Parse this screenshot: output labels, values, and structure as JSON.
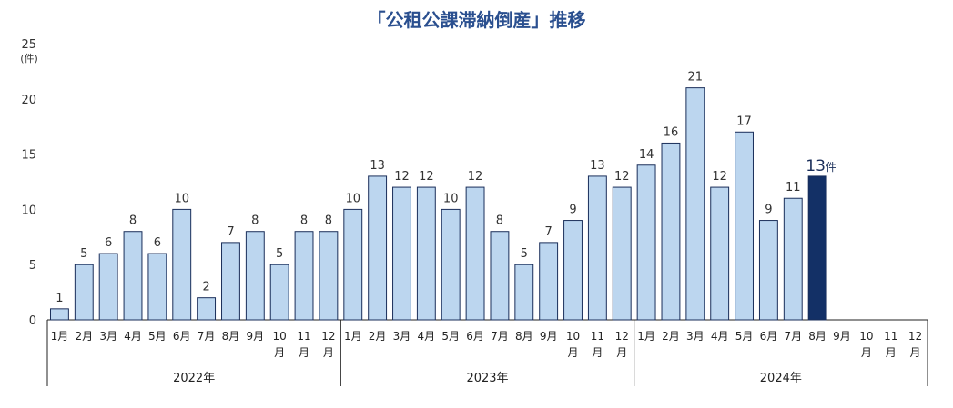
{
  "chart_data": {
    "type": "bar",
    "title": "「公租公課滞納倒産」推移",
    "y_unit": "(件)",
    "ylim": [
      0,
      25
    ],
    "yticks": [
      0,
      5,
      10,
      15,
      20,
      25
    ],
    "grid": false,
    "groups": [
      {
        "year": "2022年",
        "months": [
          "1月",
          "2月",
          "3月",
          "4月",
          "5月",
          "6月",
          "7月",
          "8月",
          "9月",
          "10月",
          "11月",
          "12月"
        ],
        "values": [
          1,
          5,
          6,
          8,
          6,
          10,
          2,
          7,
          8,
          5,
          8,
          8
        ]
      },
      {
        "year": "2023年",
        "months": [
          "1月",
          "2月",
          "3月",
          "4月",
          "5月",
          "6月",
          "7月",
          "8月",
          "9月",
          "10月",
          "11月",
          "12月"
        ],
        "values": [
          10,
          13,
          12,
          12,
          10,
          12,
          8,
          5,
          7,
          9,
          13,
          12
        ]
      },
      {
        "year": "2024年",
        "months": [
          "1月",
          "2月",
          "3月",
          "4月",
          "5月",
          "6月",
          "7月",
          "8月",
          "9月",
          "10月",
          "11月",
          "12月"
        ],
        "values": [
          14,
          16,
          21,
          12,
          17,
          9,
          11,
          13,
          null,
          null,
          null,
          null
        ]
      }
    ],
    "highlight": {
      "group": 2,
      "index": 7,
      "unit": "件"
    },
    "colors": {
      "bar_fill": "#bcd6ef",
      "bar_stroke": "#1a2e5a",
      "highlight_fill": "#133066",
      "axis": "#222222"
    }
  }
}
